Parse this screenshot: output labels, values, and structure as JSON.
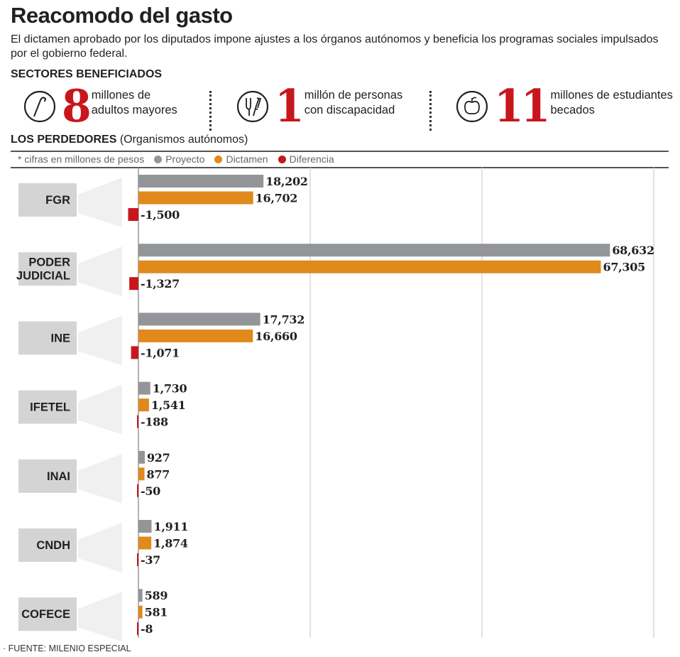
{
  "header": {
    "title": "Reacomodo del gasto",
    "subtitle": "El dictamen aprobado por los diputados impone ajustes a los órganos autónomos y beneficia los programas sociales impulsados por el gobierno federal."
  },
  "beneficiaries": {
    "heading": "SECTORES BENEFICIADOS",
    "items": [
      {
        "icon": "cane-icon",
        "number": "8",
        "line1": "millones de",
        "line2": "adultos mayores"
      },
      {
        "icon": "crutches-icon",
        "number": "1",
        "line1": "millón de personas",
        "line2": "con discapacidad"
      },
      {
        "icon": "apple-icon",
        "number": "11",
        "line1": "millones de estudiantes",
        "line2": "becados"
      }
    ]
  },
  "losers": {
    "heading": "LOS PERDEDORES",
    "heading_note": "(Organismos autónomos)"
  },
  "legend": {
    "note": "* cifras en millones de pesos",
    "items": [
      {
        "label": "Proyecto",
        "color": "#939598"
      },
      {
        "label": "Dictamen",
        "color": "#e0891c"
      },
      {
        "label": "Diferencia",
        "color": "#c8161d"
      }
    ]
  },
  "chart_data": {
    "type": "bar",
    "orientation": "horizontal",
    "title": "LOS PERDEDORES (Organismos autónomos)",
    "units": "millones de pesos",
    "categories": [
      "FGR",
      "PODER JUDICIAL",
      "INE",
      "IFETEL",
      "INAI",
      "CNDH",
      "COFECE"
    ],
    "series": [
      {
        "name": "Proyecto",
        "color": "#939598",
        "values": [
          18202,
          68632,
          17732,
          1730,
          927,
          1911,
          589
        ],
        "labels": [
          "18,202",
          "68,632",
          "17,732",
          "1,730",
          "927",
          "1,911",
          "589"
        ]
      },
      {
        "name": "Dictamen",
        "color": "#e0891c",
        "values": [
          16702,
          67305,
          16660,
          1541,
          877,
          1874,
          581
        ],
        "labels": [
          "16,702",
          "67,305",
          "16,660",
          "1,541",
          "877",
          "1,874",
          "581"
        ]
      },
      {
        "name": "Diferencia",
        "color": "#c8161d",
        "values": [
          -1500,
          -1327,
          -1071,
          -188,
          -50,
          -37,
          -8
        ],
        "labels": [
          "-1,500",
          "-1,327",
          "-1,071",
          "-188",
          "-50",
          "-37",
          "-8"
        ]
      }
    ],
    "xlim": [
      0,
      75000
    ],
    "gridlines": [
      0,
      25000,
      50000,
      75000
    ],
    "grid": true,
    "legend_position": "top-left"
  },
  "footer": {
    "source": "· FUENTE: MILENIO ESPECIAL"
  }
}
